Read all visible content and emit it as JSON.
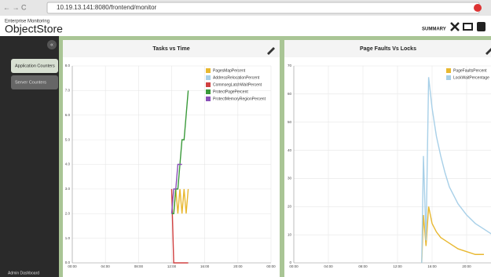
{
  "browser": {
    "url": "10.19.13.141:8080/frontend/monitor"
  },
  "header": {
    "subtitle": "Enterprise Monitoring",
    "title": "ObjectStore",
    "summary": "SUMMARY"
  },
  "sidebar": {
    "items": [
      "Application Counters",
      "Server Counters"
    ],
    "footer": "Admin Dashboard"
  },
  "chart_data": [
    {
      "type": "line",
      "title": "Tasks vs Time",
      "legend": "upper right",
      "grid": true,
      "x": [
        12.0,
        12.25,
        12.5,
        12.75,
        13.0,
        13.25,
        13.5,
        13.75,
        14.0
      ],
      "xlim": [
        0,
        24
      ],
      "xticks": [
        {
          "value": 0,
          "label": "00:00"
        },
        {
          "value": 4,
          "label": "04:00"
        },
        {
          "value": 8,
          "label": "08:00"
        },
        {
          "value": 12,
          "label": "12:00"
        },
        {
          "value": 16,
          "label": "16:00"
        },
        {
          "value": 20,
          "label": "20:00"
        },
        {
          "value": 24,
          "label": "00:00"
        }
      ],
      "ylim": [
        0,
        8
      ],
      "yticks": [
        {
          "value": 0,
          "label": "0.0"
        },
        {
          "value": 1,
          "label": "1.0"
        },
        {
          "value": 2,
          "label": "2.0"
        },
        {
          "value": 3,
          "label": "3.0"
        },
        {
          "value": 4,
          "label": "4.0"
        },
        {
          "value": 5,
          "label": "5.0"
        },
        {
          "value": 6,
          "label": "6.0"
        },
        {
          "value": 7,
          "label": "7.0"
        },
        {
          "value": 8,
          "label": "8.0"
        }
      ],
      "series": [
        {
          "name": "PagesMapPercent",
          "color": "#e8b830",
          "values": [
            null,
            2,
            3,
            2,
            3,
            2,
            3,
            2,
            3
          ]
        },
        {
          "name": "AddressRelocationPercent",
          "color": "#a8d0e8",
          "values": [
            null,
            null,
            null,
            null,
            null,
            null,
            null,
            null,
            null
          ]
        },
        {
          "name": "CommsegLatchWaitPercent",
          "color": "#d04040",
          "values": [
            3,
            0,
            0,
            0,
            0,
            0,
            0,
            0,
            0
          ]
        },
        {
          "name": "ProtectPagePercent",
          "color": "#3a9a3a",
          "values": [
            2,
            2,
            3,
            3,
            4,
            5,
            5,
            6,
            7
          ]
        },
        {
          "name": "ProtectMemoryRegionPercent",
          "color": "#8a50b8",
          "values": [
            2,
            3,
            3,
            4,
            4,
            4,
            null,
            null,
            null
          ]
        }
      ]
    },
    {
      "type": "line",
      "title": "Page Faults Vs Locks",
      "legend": "upper right",
      "grid": true,
      "x": [
        14.8,
        15.0,
        15.3,
        15.6,
        16,
        16.5,
        17,
        17.5,
        18,
        19,
        20,
        21,
        22,
        23
      ],
      "xlim": [
        0,
        24
      ],
      "xticks": [
        {
          "value": 0,
          "label": "00:00"
        },
        {
          "value": 4,
          "label": "04:00"
        },
        {
          "value": 8,
          "label": "08:00"
        },
        {
          "value": 12,
          "label": "12:00"
        },
        {
          "value": 16,
          "label": "16:00"
        },
        {
          "value": 20,
          "label": "20:00"
        },
        {
          "value": 24,
          "label": "00:00"
        }
      ],
      "ylim": [
        0,
        70
      ],
      "yticks": [
        0,
        10,
        20,
        30,
        40,
        50,
        60,
        70
      ],
      "series": [
        {
          "name": "PageFaultsPercent",
          "color": "#e8b830",
          "values": [
            0,
            17,
            6,
            20,
            14,
            11,
            9,
            8,
            7,
            5,
            4,
            3,
            3,
            null
          ]
        },
        {
          "name": "LockWaitPercentage",
          "color": "#a8d0e8",
          "values": [
            0,
            38,
            8,
            66,
            55,
            45,
            38,
            32,
            27,
            21,
            17,
            14,
            12,
            10
          ]
        }
      ]
    }
  ]
}
